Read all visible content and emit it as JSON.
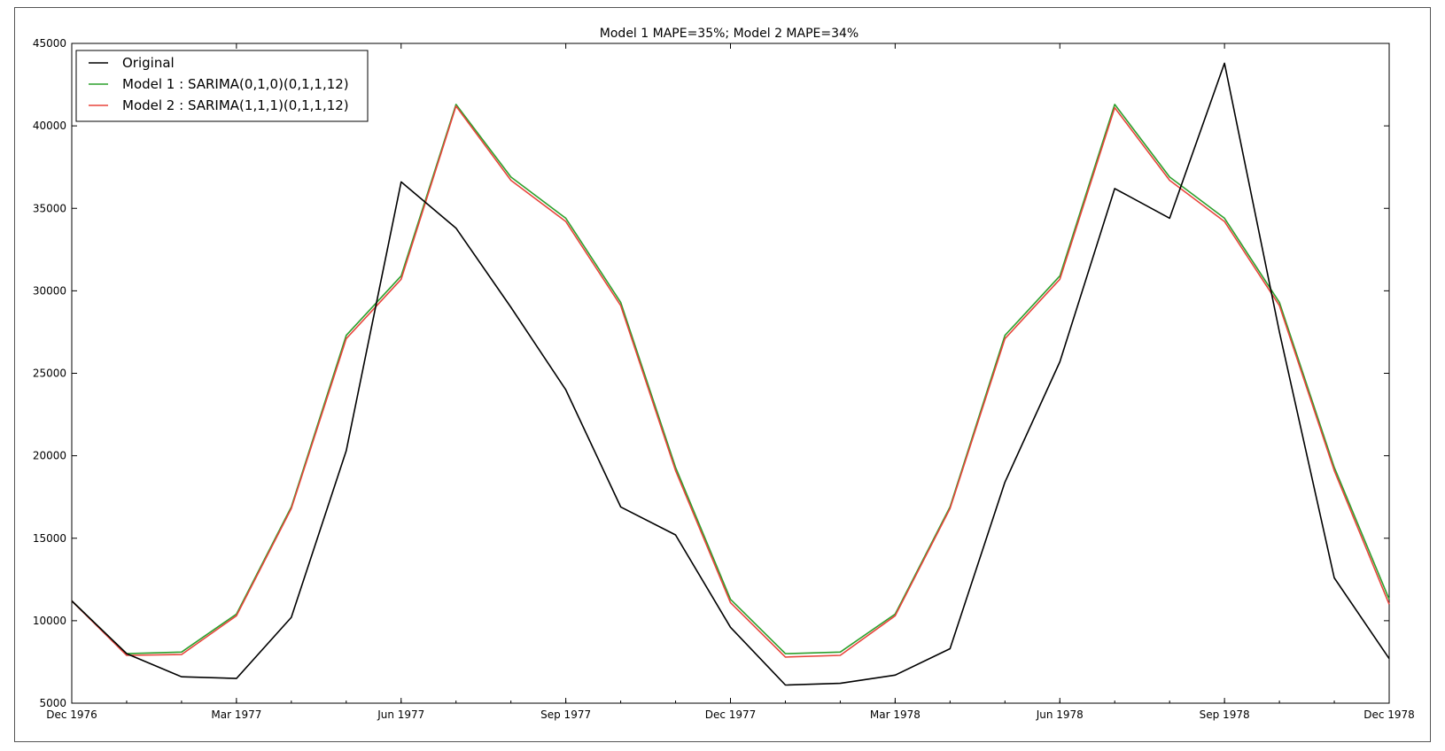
{
  "chart_data": {
    "type": "line",
    "title": "Model 1 MAPE=35%; Model 2 MAPE=34%",
    "xlabel": "",
    "ylabel": "",
    "x": [
      "1976-12",
      "1977-01",
      "1977-02",
      "1977-03",
      "1977-04",
      "1977-05",
      "1977-06",
      "1977-07",
      "1977-08",
      "1977-09",
      "1977-10",
      "1977-11",
      "1977-12",
      "1978-01",
      "1978-02",
      "1978-03",
      "1978-04",
      "1978-05",
      "1978-06",
      "1978-07",
      "1978-08",
      "1978-09",
      "1978-10",
      "1978-11",
      "1978-12"
    ],
    "xticks": [
      {
        "label": "Dec 1976",
        "x": "1976-12"
      },
      {
        "label": "Mar 1977",
        "x": "1977-03"
      },
      {
        "label": "Jun 1977",
        "x": "1977-06"
      },
      {
        "label": "Sep 1977",
        "x": "1977-09"
      },
      {
        "label": "Dec 1977",
        "x": "1977-12"
      },
      {
        "label": "Mar 1978",
        "x": "1978-03"
      },
      {
        "label": "Jun 1978",
        "x": "1978-06"
      },
      {
        "label": "Sep 1978",
        "x": "1978-09"
      },
      {
        "label": "Dec 1978",
        "x": "1978-12"
      }
    ],
    "yticks": [
      5000,
      10000,
      15000,
      20000,
      25000,
      30000,
      35000,
      40000,
      45000
    ],
    "ylim": [
      5000,
      45000
    ],
    "grid": false,
    "legend_position": "top-left",
    "series": [
      {
        "name": "Original",
        "color": "#000000",
        "values": [
          11200,
          8000,
          6600,
          6500,
          10200,
          20300,
          36600,
          33800,
          29000,
          24000,
          16900,
          15200,
          9600,
          6100,
          6200,
          6700,
          8300,
          18400,
          25700,
          36200,
          34400,
          43800,
          27500,
          12600,
          7700
        ]
      },
      {
        "name": "Model 1 : SARIMA(0,1,0)(0,1,1,12)",
        "color": "#2ca02c",
        "values": [
          11200,
          8000,
          8100,
          10400,
          16900,
          27300,
          30900,
          41300,
          36900,
          34400,
          29300,
          19300,
          11300,
          8000,
          8100,
          10400,
          16900,
          27300,
          30900,
          41300,
          36900,
          34400,
          29300,
          19300,
          11300
        ]
      },
      {
        "name": "Model 2 : SARIMA(1,1,1)(0,1,1,12)",
        "color": "#e8453c",
        "values": [
          11200,
          7900,
          7950,
          10300,
          16800,
          27100,
          30700,
          41200,
          36700,
          34200,
          29100,
          19100,
          11100,
          7800,
          7900,
          10300,
          16800,
          27100,
          30700,
          41100,
          36700,
          34200,
          29100,
          19100,
          11000
        ]
      }
    ]
  }
}
